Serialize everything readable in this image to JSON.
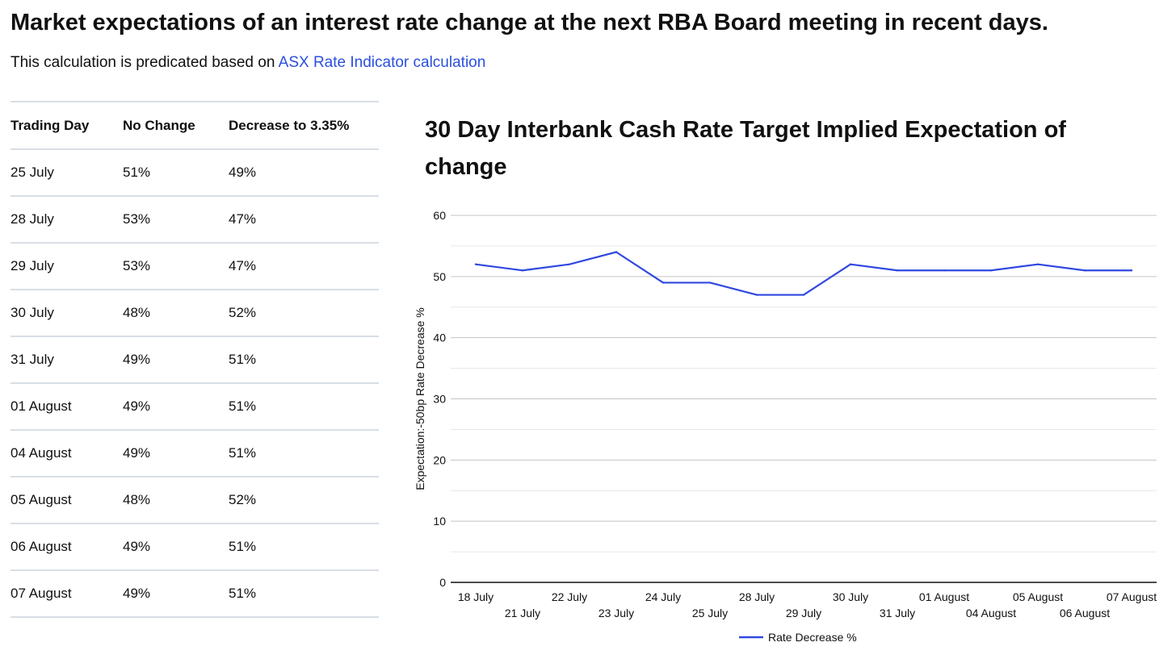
{
  "page": {
    "title": "Market expectations of an interest rate change at the next RBA Board meeting in recent days.",
    "subtitle_prefix": "This calculation is predicated based on ",
    "subtitle_link": "ASX Rate Indicator calculation"
  },
  "table": {
    "headers": [
      "Trading Day",
      "No Change",
      "Decrease to 3.35%"
    ],
    "rows": [
      [
        "25 July",
        "51%",
        "49%"
      ],
      [
        "28 July",
        "53%",
        "47%"
      ],
      [
        "29 July",
        "53%",
        "47%"
      ],
      [
        "30 July",
        "48%",
        "52%"
      ],
      [
        "31 July",
        "49%",
        "51%"
      ],
      [
        "01 August",
        "49%",
        "51%"
      ],
      [
        "04 August",
        "49%",
        "51%"
      ],
      [
        "05 August",
        "48%",
        "52%"
      ],
      [
        "06 August",
        "49%",
        "51%"
      ],
      [
        "07 August",
        "49%",
        "51%"
      ]
    ]
  },
  "chart_data": {
    "type": "line",
    "title": "30 Day Interbank Cash Rate Target Implied Expectation of change",
    "xlabel": "",
    "ylabel": "Expectation:-50bp Rate Decrease %",
    "ylim": [
      0,
      60
    ],
    "yticks": [
      0,
      10,
      20,
      30,
      40,
      50,
      60
    ],
    "grid": true,
    "legend_position": "bottom-center",
    "categories": [
      "18 July",
      "21 July",
      "22 July",
      "23 July",
      "24 July",
      "25 July",
      "28 July",
      "29 July",
      "30 July",
      "31 July",
      "01 August",
      "04 August",
      "05 August",
      "06 August",
      "07 August"
    ],
    "series": [
      {
        "name": "Rate Decrease %",
        "color": "#3048e0",
        "values": [
          52,
          51,
          52,
          54,
          49,
          49,
          47,
          47,
          52,
          51,
          51,
          51,
          52,
          51,
          51
        ]
      }
    ]
  },
  "colors": {
    "link": "#2b4fe0",
    "line": "#3048e0",
    "grid": "#cccccc",
    "table_border": "#d8dee6"
  }
}
